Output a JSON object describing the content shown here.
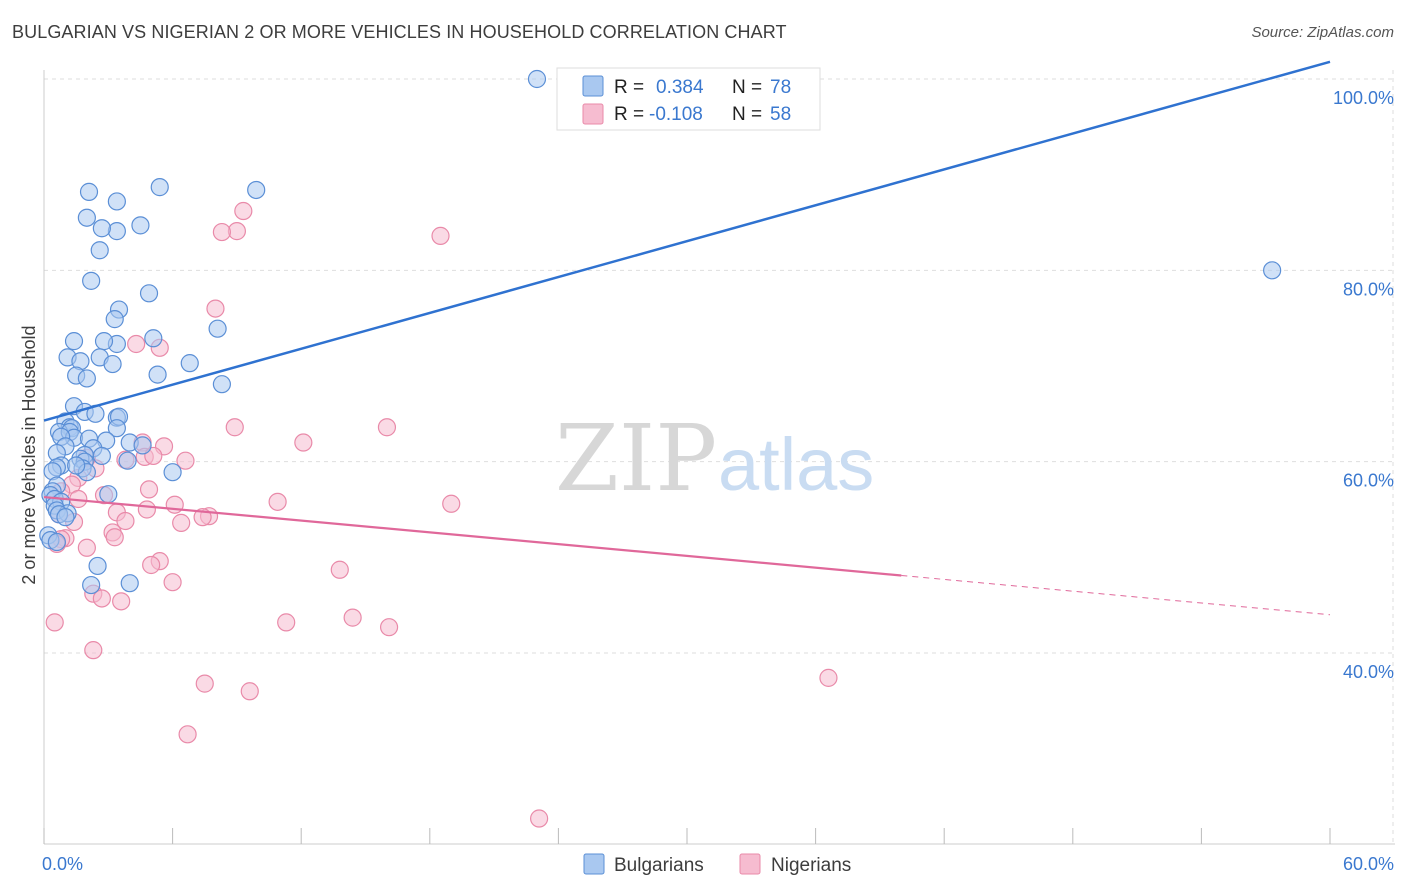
{
  "chart_data": {
    "type": "scatter",
    "title": "BULGARIAN VS NIGERIAN 2 OR MORE VEHICLES IN HOUSEHOLD CORRELATION CHART",
    "source": "Source: ZipAtlas.com",
    "xlabel": "",
    "ylabel": "2 or more Vehicles in Household",
    "xlim": [
      0,
      60
    ],
    "ylim": [
      20,
      102
    ],
    "x_tick_labels": [
      {
        "value": 0,
        "label": "0.0%"
      },
      {
        "value": 60,
        "label": "60.0%"
      }
    ],
    "y_tick_labels": [
      {
        "value": 100,
        "label": "100.0%"
      },
      {
        "value": 80,
        "label": "80.0%"
      },
      {
        "value": 60,
        "label": "60.0%"
      },
      {
        "value": 40,
        "label": "40.0%"
      }
    ],
    "watermark": {
      "part1": "ZIP",
      "part2": "atlas"
    },
    "legend": {
      "r_label": "R =",
      "n_label": "N =",
      "entries": [
        {
          "name": "Bulgarians",
          "r": "0.384",
          "n": "78"
        },
        {
          "name": "Nigerians",
          "r": "-0.108",
          "n": "58"
        }
      ]
    },
    "colors": {
      "bulgarian_fill": "#a9c8f0",
      "bulgarian_stroke": "#5b8fd6",
      "bulgarian_line": "#2f72d0",
      "nigerian_fill": "#f6bcd0",
      "nigerian_stroke": "#e98aa9",
      "nigerian_line": "#e0689a",
      "axis_text": "#3a78cf"
    },
    "series": [
      {
        "name": "Bulgarians",
        "trend": {
          "x0": 0,
          "y0": 64.3,
          "x1": 60,
          "y1": 101.8,
          "solid_until": 60
        },
        "points": [
          [
            23,
            100
          ],
          [
            5.4,
            88.7
          ],
          [
            9.9,
            88.4
          ],
          [
            2.1,
            88.2
          ],
          [
            3.4,
            87.2
          ],
          [
            2.0,
            85.5
          ],
          [
            3.4,
            84.1
          ],
          [
            4.5,
            84.7
          ],
          [
            2.7,
            84.4
          ],
          [
            2.6,
            82.1
          ],
          [
            2.2,
            78.9
          ],
          [
            4.9,
            77.6
          ],
          [
            3.5,
            75.9
          ],
          [
            3.3,
            74.9
          ],
          [
            8.1,
            73.9
          ],
          [
            1.4,
            72.6
          ],
          [
            3.4,
            72.3
          ],
          [
            2.8,
            72.6
          ],
          [
            5.1,
            72.9
          ],
          [
            1.1,
            70.9
          ],
          [
            2.6,
            70.9
          ],
          [
            1.7,
            70.5
          ],
          [
            3.2,
            70.2
          ],
          [
            6.8,
            70.3
          ],
          [
            1.5,
            69.0
          ],
          [
            2.0,
            68.7
          ],
          [
            5.3,
            69.1
          ],
          [
            8.3,
            68.1
          ],
          [
            1.4,
            65.8
          ],
          [
            1.9,
            65.2
          ],
          [
            2.4,
            65.0
          ],
          [
            3.4,
            64.6
          ],
          [
            3.5,
            64.7
          ],
          [
            1.0,
            64.2
          ],
          [
            1.2,
            63.6
          ],
          [
            1.3,
            63.5
          ],
          [
            0.7,
            63.1
          ],
          [
            1.2,
            63.1
          ],
          [
            1.4,
            62.5
          ],
          [
            3.4,
            63.5
          ],
          [
            0.8,
            62.6
          ],
          [
            2.1,
            62.4
          ],
          [
            2.9,
            62.2
          ],
          [
            1.0,
            61.6
          ],
          [
            2.3,
            61.4
          ],
          [
            4.0,
            62.0
          ],
          [
            4.6,
            61.7
          ],
          [
            1.9,
            60.7
          ],
          [
            2.7,
            60.6
          ],
          [
            0.6,
            60.9
          ],
          [
            1.7,
            60.3
          ],
          [
            1.9,
            60.0
          ],
          [
            3.9,
            60.1
          ],
          [
            0.8,
            59.6
          ],
          [
            0.6,
            59.4
          ],
          [
            1.8,
            59.3
          ],
          [
            0.4,
            59.0
          ],
          [
            2.0,
            58.9
          ],
          [
            6.0,
            58.9
          ],
          [
            0.6,
            57.5
          ],
          [
            0.4,
            56.9
          ],
          [
            0.3,
            56.5
          ],
          [
            0.5,
            56.1
          ],
          [
            0.8,
            55.8
          ],
          [
            0.5,
            55.4
          ],
          [
            0.6,
            54.9
          ],
          [
            1.1,
            54.6
          ],
          [
            0.7,
            54.5
          ],
          [
            1.0,
            54.2
          ],
          [
            0.2,
            52.3
          ],
          [
            0.3,
            51.8
          ],
          [
            0.6,
            51.6
          ],
          [
            2.5,
            49.1
          ],
          [
            2.2,
            47.1
          ],
          [
            4.0,
            47.3
          ],
          [
            3.0,
            56.6
          ],
          [
            57.3,
            80.0
          ],
          [
            1.5,
            59.6
          ]
        ]
      },
      {
        "name": "Nigerians",
        "trend": {
          "x0": 0,
          "y0": 56.3,
          "x1": 60,
          "y1": 44.0,
          "solid_until": 40
        },
        "points": [
          [
            9.3,
            86.2
          ],
          [
            9.0,
            84.1
          ],
          [
            8.3,
            84.0
          ],
          [
            18.5,
            83.6
          ],
          [
            8.0,
            76.0
          ],
          [
            4.3,
            72.3
          ],
          [
            5.4,
            71.9
          ],
          [
            8.9,
            63.6
          ],
          [
            16.0,
            63.6
          ],
          [
            12.1,
            62.0
          ],
          [
            4.6,
            62.0
          ],
          [
            5.6,
            61.6
          ],
          [
            4.7,
            60.5
          ],
          [
            5.1,
            60.6
          ],
          [
            3.8,
            60.2
          ],
          [
            6.6,
            60.1
          ],
          [
            2.4,
            59.3
          ],
          [
            1.6,
            58.3
          ],
          [
            1.3,
            57.6
          ],
          [
            0.8,
            56.9
          ],
          [
            2.8,
            56.5
          ],
          [
            1.6,
            56.1
          ],
          [
            10.9,
            55.8
          ],
          [
            19.0,
            55.6
          ],
          [
            6.1,
            55.5
          ],
          [
            4.8,
            55.0
          ],
          [
            3.4,
            54.7
          ],
          [
            0.7,
            54.5
          ],
          [
            7.7,
            54.3
          ],
          [
            7.4,
            54.2
          ],
          [
            6.4,
            53.6
          ],
          [
            3.8,
            53.8
          ],
          [
            1.4,
            53.7
          ],
          [
            3.2,
            52.6
          ],
          [
            3.3,
            52.1
          ],
          [
            1.0,
            52.0
          ],
          [
            0.8,
            51.9
          ],
          [
            0.6,
            51.4
          ],
          [
            2.0,
            51.0
          ],
          [
            5.4,
            49.6
          ],
          [
            5.0,
            49.2
          ],
          [
            13.8,
            48.7
          ],
          [
            6.0,
            47.4
          ],
          [
            2.3,
            46.2
          ],
          [
            2.7,
            45.7
          ],
          [
            3.6,
            45.4
          ],
          [
            14.4,
            43.7
          ],
          [
            11.3,
            43.2
          ],
          [
            16.1,
            42.7
          ],
          [
            0.5,
            43.2
          ],
          [
            2.3,
            40.3
          ],
          [
            7.5,
            36.8
          ],
          [
            9.6,
            36.0
          ],
          [
            36.6,
            37.4
          ],
          [
            6.7,
            31.5
          ],
          [
            23.1,
            22.7
          ],
          [
            4.9,
            57.1
          ],
          [
            2.0,
            60.4
          ]
        ]
      }
    ]
  }
}
